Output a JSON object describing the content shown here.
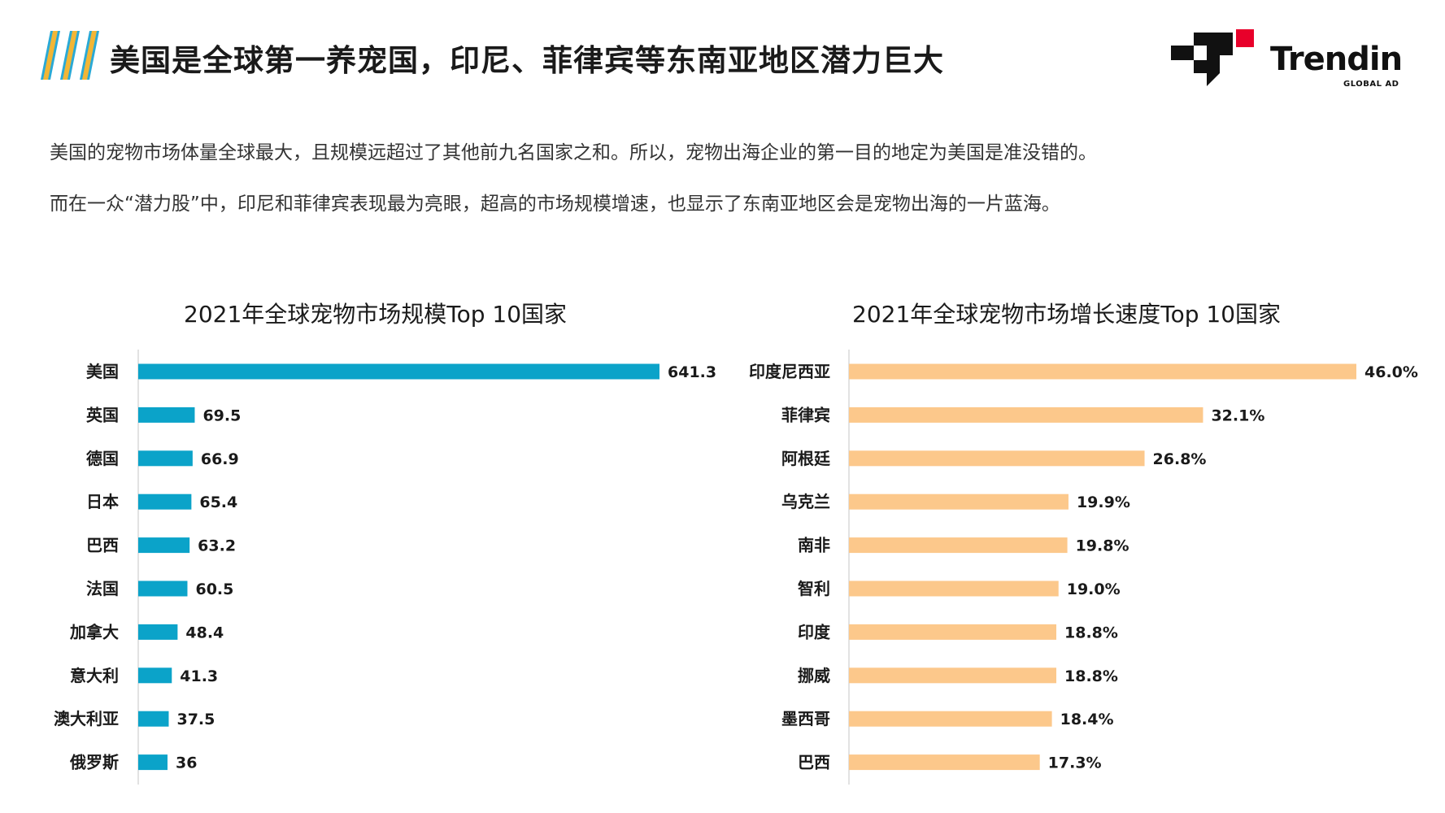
{
  "header": {
    "title": "美国是全球第一养宠国，印尼、菲律宾等东南亚地区潜力巨大",
    "logo_text": "Trendin",
    "logo_sub": "GLOBAL AD"
  },
  "description": {
    "line1": "美国的宠物市场体量全球最大，且规模远超过了其他前九名国家之和。所以，宠物出海企业的第一目的地定为美国是准没错的。",
    "line2": "而在一众“潜力股”中，印尼和菲律宾表现最为亮眼，超高的市场规模增速，也显示了东南亚地区会是宠物出海的一片蓝海。"
  },
  "colors": {
    "accent_blue": "#0ba3c9",
    "accent_orange": "#fcc88b",
    "logo_red": "#e8002a",
    "stripe_blue": "#2aa9d6",
    "stripe_gold": "#f2b636"
  },
  "chart_data": [
    {
      "type": "bar",
      "orientation": "horizontal",
      "title": "2021年全球宠物市场规模Top 10国家",
      "categories": [
        "美国",
        "英国",
        "德国",
        "日本",
        "巴西",
        "法国",
        "加拿大",
        "意大利",
        "澳大利亚",
        "俄罗斯"
      ],
      "values": [
        641.3,
        69.5,
        66.9,
        65.4,
        63.2,
        60.5,
        48.4,
        41.3,
        37.5,
        36
      ],
      "value_labels": [
        "641.3",
        "69.5",
        "66.9",
        "65.4",
        "63.2",
        "60.5",
        "48.4",
        "41.3",
        "37.5",
        "36"
      ],
      "xlim": [
        0,
        641.3
      ],
      "color": "#0ba3c9"
    },
    {
      "type": "bar",
      "orientation": "horizontal",
      "title": "2021年全球宠物市场增长速度Top 10国家",
      "categories": [
        "印度尼西亚",
        "菲律宾",
        "阿根廷",
        "乌克兰",
        "南非",
        "智利",
        "印度",
        "挪威",
        "墨西哥",
        "巴西"
      ],
      "values": [
        46.0,
        32.1,
        26.8,
        19.9,
        19.8,
        19.0,
        18.8,
        18.8,
        18.4,
        17.3
      ],
      "value_labels": [
        "46.0%",
        "32.1%",
        "26.8%",
        "19.9%",
        "19.8%",
        "19.0%",
        "18.8%",
        "18.8%",
        "18.4%",
        "17.3%"
      ],
      "xlim": [
        0,
        46.0
      ],
      "color": "#fcc88b"
    }
  ]
}
